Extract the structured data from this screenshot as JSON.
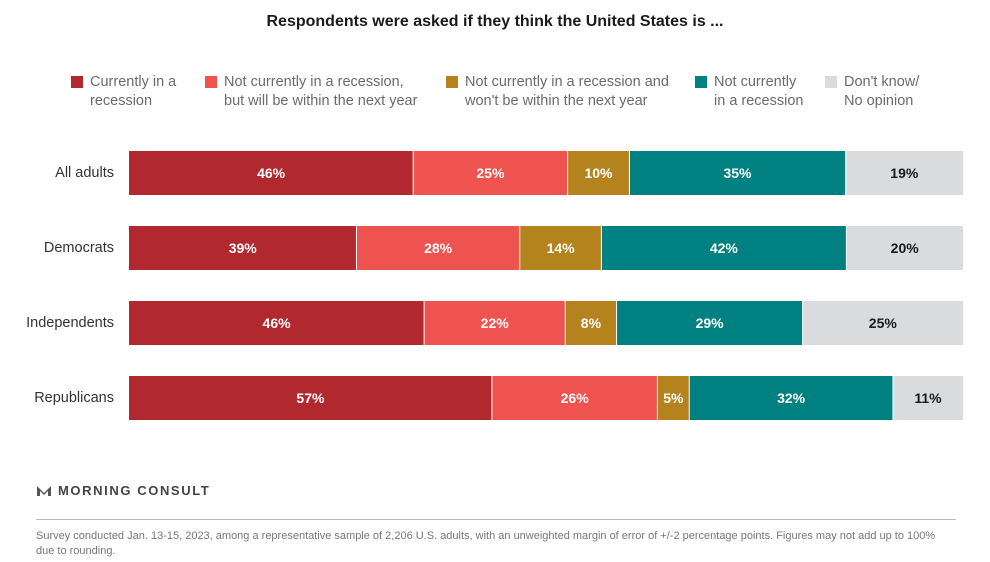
{
  "chart_data": {
    "type": "bar",
    "orientation": "horizontal",
    "stacked": true,
    "title": "Respondents were asked if they think the United States is ...",
    "categories": [
      "All adults",
      "Democrats",
      "Independents",
      "Republicans"
    ],
    "series": [
      {
        "name": "Currently in a\nrecession",
        "color": "#b1282e",
        "values": [
          46,
          39,
          46,
          57
        ],
        "labels": [
          "46%",
          "39%",
          "46%",
          "57%"
        ],
        "label_color": "#ffffff"
      },
      {
        "name": "Not currently in a recession,\nbut will be within the next year",
        "color": "#ef5350",
        "values": [
          25,
          28,
          22,
          26
        ],
        "labels": [
          "25%",
          "28%",
          "22%",
          "26%"
        ],
        "label_color": "#ffffff"
      },
      {
        "name": "Not currently in a recession and\nwon't be within the next year",
        "color": "#b5831d",
        "values": [
          10,
          14,
          8,
          5
        ],
        "labels": [
          "10%",
          "14%",
          "8%",
          "5%"
        ],
        "label_color": "#ffffff"
      },
      {
        "name": "Not currently\nin a recession",
        "color": "#008080",
        "values": [
          35,
          42,
          29,
          32
        ],
        "labels": [
          "35%",
          "42%",
          "29%",
          "32%"
        ],
        "label_color": "#ffffff"
      },
      {
        "name": "Don't know/\nNo opinion",
        "color": "#d9dbdc",
        "values": [
          19,
          20,
          25,
          11
        ],
        "labels": [
          "19%",
          "20%",
          "25%",
          "11%"
        ],
        "label_color": "#1a1a1a"
      }
    ],
    "legend_position": "top",
    "grid": false
  },
  "branding": {
    "logo_text": "MORNING CONSULT"
  },
  "footnote": "Survey conducted Jan. 13-15, 2023, among a representative sample of 2,206 U.S. adults, with an unweighted margin of error of +/-2 percentage points. Figures may not add up to 100% due to rounding."
}
